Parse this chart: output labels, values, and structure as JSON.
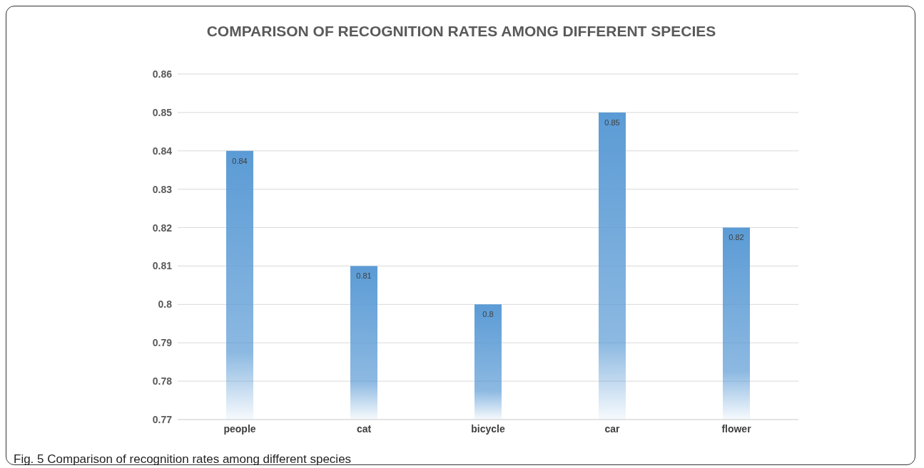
{
  "chart_data": {
    "type": "bar",
    "title": "COMPARISON OF RECOGNITION RATES AMONG DIFFERENT SPECIES",
    "categories": [
      "people",
      "cat",
      "bicycle",
      "car",
      "flower"
    ],
    "values": [
      0.84,
      0.81,
      0.8,
      0.85,
      0.82
    ],
    "color": "#5b9bd5",
    "ylim": [
      0.77,
      0.86
    ],
    "yticks": [
      0.77,
      0.78,
      0.79,
      0.8,
      0.81,
      0.82,
      0.83,
      0.84,
      0.85,
      0.86
    ],
    "grid": "y",
    "data_labels": true,
    "annotations": [
      "Fig. 5 Comparison of recognition rates among different species"
    ]
  }
}
